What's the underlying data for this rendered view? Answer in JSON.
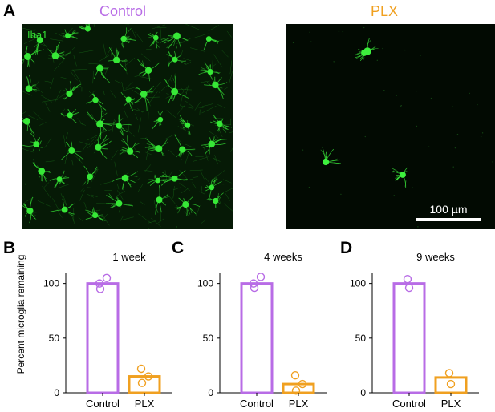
{
  "panels": {
    "a_letter": "A",
    "b_letter": "B",
    "c_letter": "C",
    "d_letter": "D"
  },
  "images": {
    "control_title": "Control",
    "plx_title": "PLX",
    "stain_label": "Iba1",
    "scale_bar_label": "100 µm"
  },
  "colors": {
    "control": "#b86ce6",
    "plx": "#f0a020",
    "stain": "#33dd33"
  },
  "ylabel": "Percent microglia remaining",
  "chart_data": [
    {
      "type": "bar",
      "title": "1 week",
      "categories": [
        "Control",
        "PLX"
      ],
      "values": [
        100,
        15
      ],
      "points": [
        [
          100,
          105,
          95
        ],
        [
          22,
          15,
          9
        ]
      ],
      "yticks": [
        0,
        50,
        100
      ],
      "ylim": [
        0,
        110
      ]
    },
    {
      "type": "bar",
      "title": "4 weeks",
      "categories": [
        "Control",
        "PLX"
      ],
      "values": [
        100,
        8
      ],
      "points": [
        [
          100,
          106,
          96
        ],
        [
          16,
          8,
          2
        ]
      ],
      "yticks": [
        0,
        50,
        100
      ],
      "ylim": [
        0,
        110
      ]
    },
    {
      "type": "bar",
      "title": "9 weeks",
      "categories": [
        "Control",
        "PLX"
      ],
      "values": [
        100,
        14
      ],
      "points": [
        [
          104,
          96
        ],
        [
          18,
          8
        ]
      ],
      "yticks": [
        0,
        50,
        100
      ],
      "ylim": [
        0,
        110
      ]
    }
  ]
}
